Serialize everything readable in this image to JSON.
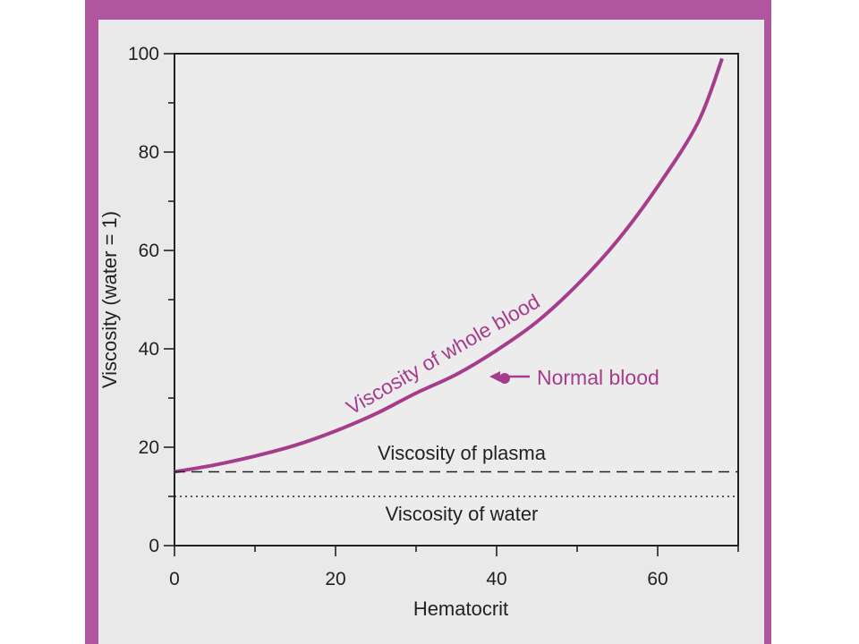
{
  "colors": {
    "frame": "#b0569e",
    "panel": "#e9e9ea",
    "curve": "#a63c8c",
    "axis": "#222222"
  },
  "chart_data": {
    "type": "line",
    "xlabel": "Hematocrit",
    "ylabel": "Viscosity (water = 1)",
    "xlim": [
      0,
      70
    ],
    "ylim": [
      0,
      100
    ],
    "x_ticks": [
      0,
      20,
      40,
      60
    ],
    "y_ticks": [
      0,
      20,
      40,
      60,
      80,
      100
    ],
    "x_tick_labels": [
      "0",
      "20",
      "40",
      "60"
    ],
    "y_tick_labels": [
      "0",
      "20",
      "40",
      "60",
      "80",
      "100"
    ],
    "grid": false,
    "series": [
      {
        "name": "Viscosity of whole blood",
        "style": "solid",
        "x": [
          0,
          5,
          10,
          15,
          20,
          25,
          30,
          35,
          40,
          45,
          50,
          55,
          60,
          65,
          68
        ],
        "y": [
          15,
          16.4,
          18.2,
          20.4,
          23.3,
          26.8,
          31,
          34.8,
          39.7,
          45.5,
          53,
          62,
          73,
          86,
          99
        ]
      },
      {
        "name": "Viscosity of plasma",
        "style": "dashed",
        "x": [
          0,
          70
        ],
        "y": [
          15,
          15
        ]
      },
      {
        "name": "Viscosity of water",
        "style": "dotted",
        "x": [
          0,
          70
        ],
        "y": [
          10,
          10
        ]
      }
    ],
    "highlight_point": {
      "label": "Normal blood",
      "x": 41,
      "y": 34
    },
    "annotations": {
      "plasma": "Viscosity of plasma",
      "water": "Viscosity of water"
    }
  }
}
